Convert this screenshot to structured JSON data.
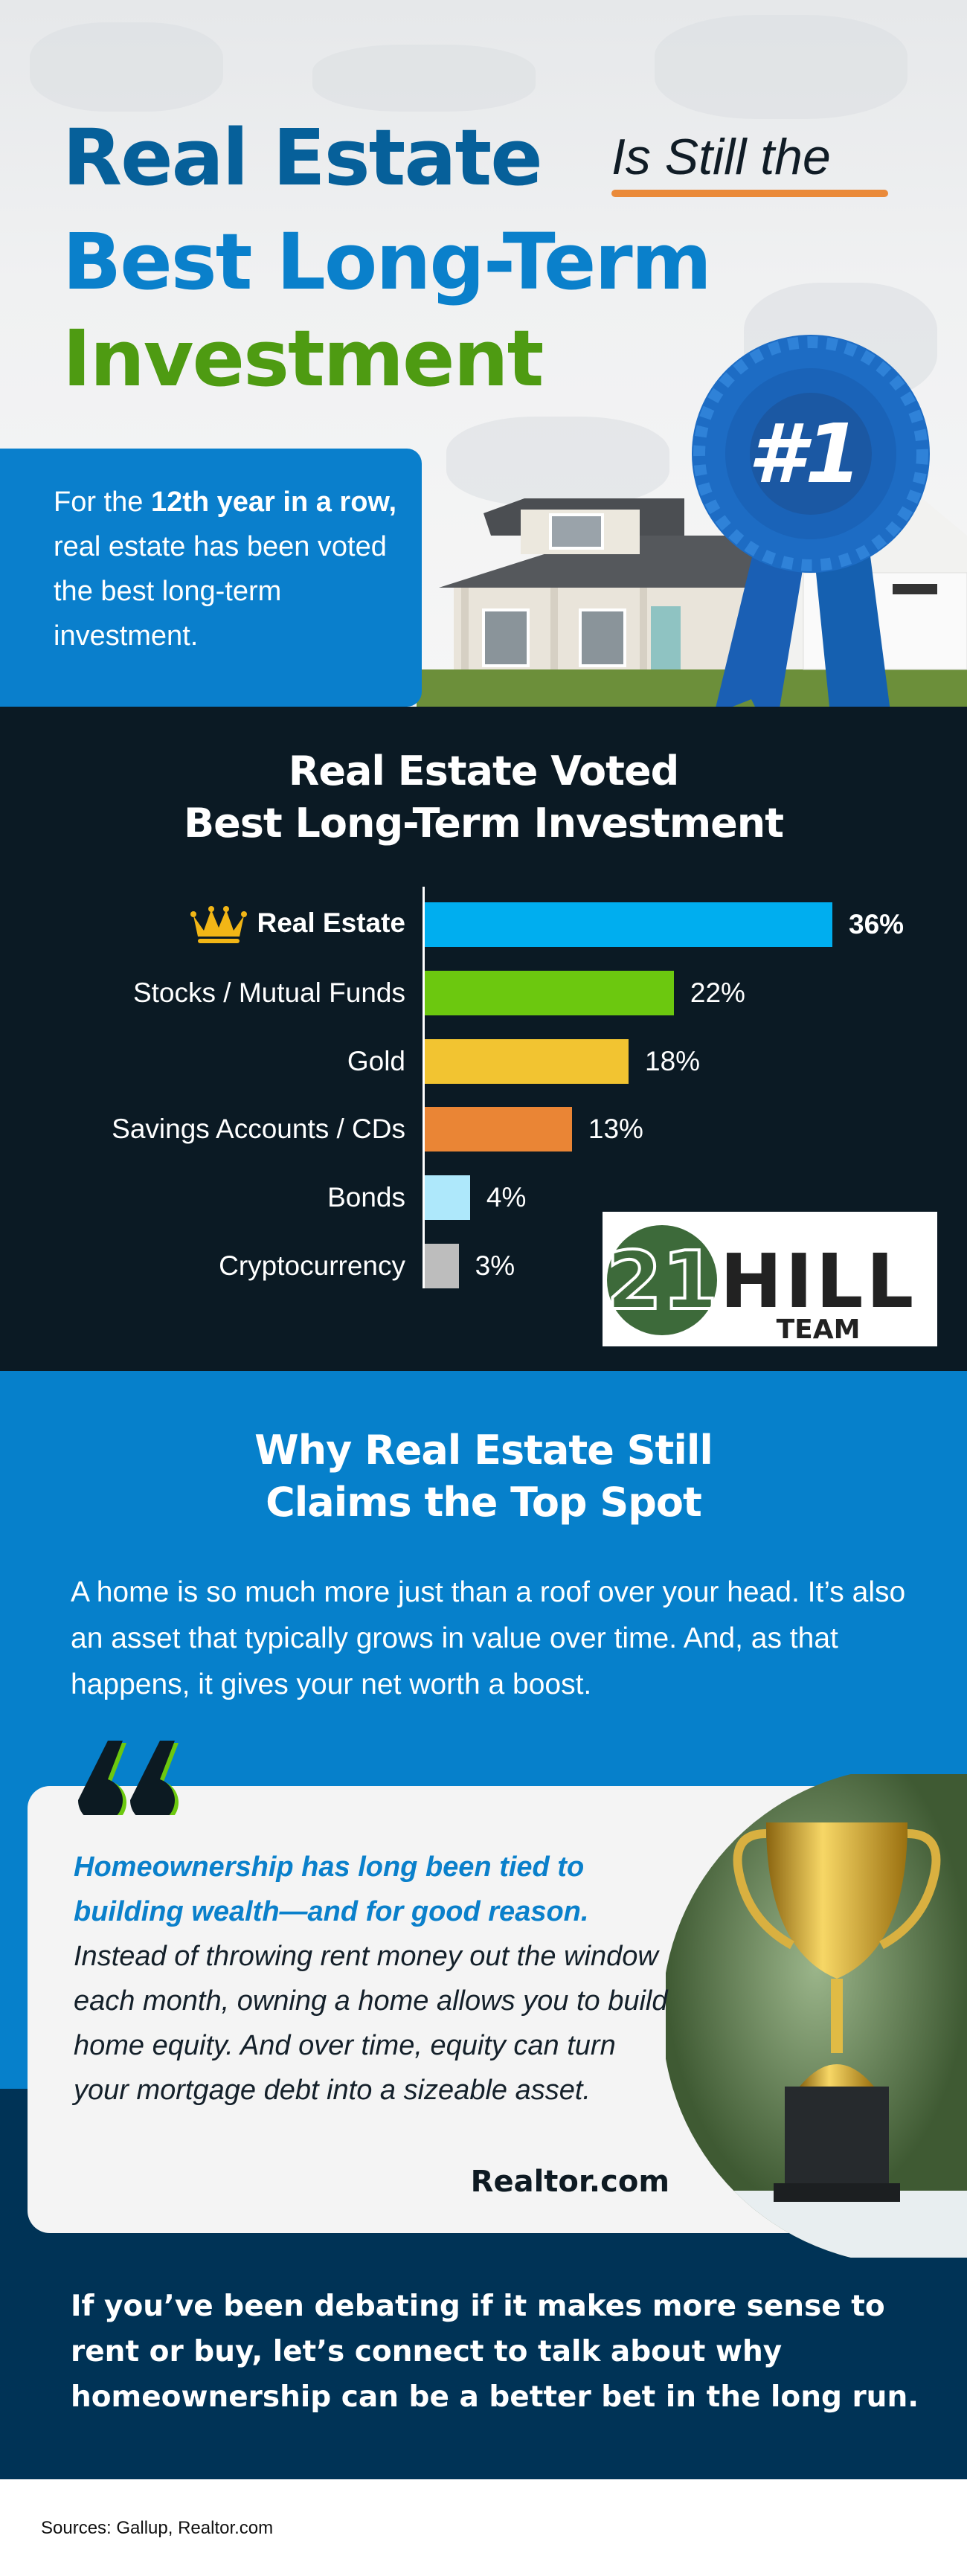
{
  "header": {
    "title_line1": "Real Estate",
    "title_sub": "Is Still the",
    "title_line2": "Best Long-Term",
    "title_line3": "Investment",
    "intro_prefix": "For the ",
    "intro_bold": "12th year in a row,",
    "intro_rest": " real estate has been voted the best long-term investment.",
    "ribbon_text": "#1"
  },
  "chart_data": {
    "type": "bar",
    "orientation": "horizontal",
    "title": "Real Estate Voted\nBest Long-Term Investment",
    "title_line1": "Real Estate Voted",
    "title_line2": "Best Long-Term Investment",
    "categories": [
      "Real Estate",
      "Stocks / Mutual Funds",
      "Gold",
      "Savings Accounts / CDs",
      "Bonds",
      "Cryptocurrency"
    ],
    "values": [
      36,
      22,
      18,
      13,
      4,
      3
    ],
    "value_labels": [
      "36%",
      "22%",
      "18%",
      "13%",
      "4%",
      "3%"
    ],
    "unit": "%",
    "colors": [
      "#00aeef",
      "#6cc80f",
      "#f2c431",
      "#ea8535",
      "#aee8fb",
      "#bdbdbd"
    ],
    "highlight_icon": "crown-icon",
    "grid": false
  },
  "logo": {
    "number": "21",
    "name": "HILL",
    "sub": "TEAM",
    "color": "#3d6a3a"
  },
  "why": {
    "title_line1": "Why Real Estate Still",
    "title_line2": "Claims the Top Spot",
    "paragraph": "A home is so much more just than a roof over your head. It’s also an asset that typically grows in value over time. And, as that happens, it gives your net worth a boost."
  },
  "quote": {
    "highlight": "Homeownership has long been tied to building wealth—and for good reason.",
    "body": " Instead of throwing rent money out the window each month, owning a home allows you to build home equity. And over time, equity can turn your mortgage debt into a sizeable asset.",
    "source": "Realtor.com"
  },
  "cta": "If you’ve been debating if it makes more sense to rent or buy, let’s connect to talk about why homeownership can be a better bet in the long run.",
  "sources": "Sources: Gallup, Realtor.com",
  "colors": {
    "blue": "#0a80cb",
    "dark_blue": "#06609a",
    "green": "#4e9b12",
    "navy": "#003356",
    "dark": "#0b1a24",
    "orange": "#ea8a3a"
  }
}
